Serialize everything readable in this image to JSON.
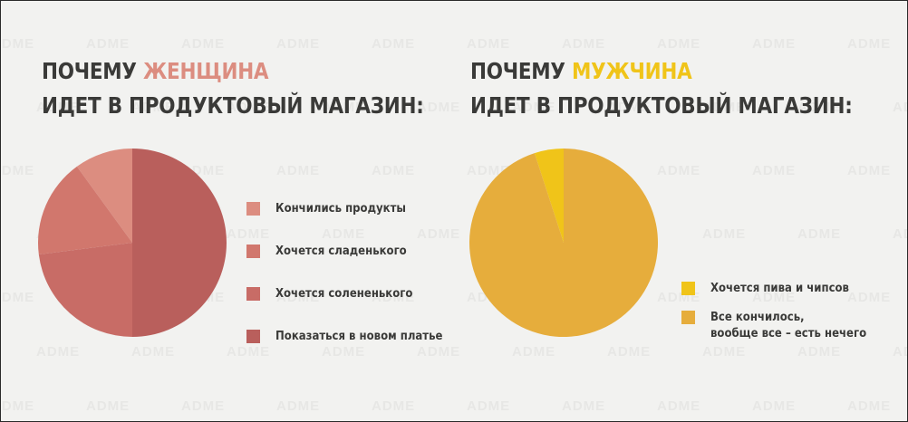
{
  "watermark_text": "ADME",
  "charts": {
    "women": {
      "title_prefix": "ПОЧЕМУ ",
      "title_highlight": "ЖЕНЩИНА",
      "title_line2": "ИДЕТ В ПРОДУКТОВЫЙ МАГАЗИН:",
      "highlight_color": "#dc8d80"
    },
    "men": {
      "title_prefix": "ПОЧЕМУ ",
      "title_highlight": "МУЖЧИНА",
      "title_line2": "ИДЕТ В ПРОДУКТОВЫЙ МАГАЗИН:",
      "highlight_color": "#f0c419"
    }
  },
  "chart_data": [
    {
      "type": "pie",
      "title": "ПОЧЕМУ ЖЕНЩИНА ИДЕТ В ПРОДУКТОВЫЙ МАГАЗИН:",
      "legend_position": "right",
      "slices": [
        {
          "label": "Кончились продукты",
          "value": 10,
          "color": "#dc8d80"
        },
        {
          "label": "Хочется сладенького",
          "value": 17,
          "color": "#d1776d"
        },
        {
          "label": "Хочется солененького",
          "value": 23,
          "color": "#c86c66"
        },
        {
          "label": "Показаться в новом платье",
          "value": 50,
          "color": "#b95f5c"
        }
      ]
    },
    {
      "type": "pie",
      "title": "ПОЧЕМУ МУЖЧИНА ИДЕТ В ПРОДУКТОВЫЙ МАГАЗИН:",
      "legend_position": "right",
      "slices": [
        {
          "label": "Хочется пива и чипсов",
          "value": 5,
          "color": "#f0c419"
        },
        {
          "label": "Все кончилось,\nвообще все – есть нечего",
          "value": 95,
          "color": "#e6ad3c"
        }
      ]
    }
  ]
}
